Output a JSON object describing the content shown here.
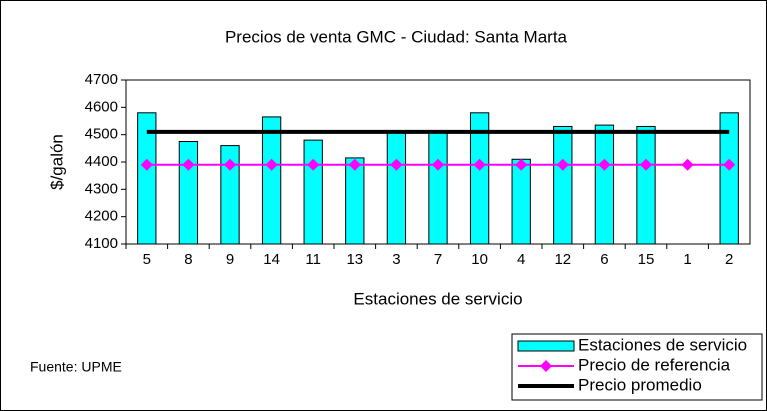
{
  "chart_data": {
    "type": "bar",
    "title": "Precios de venta GMC - Ciudad: Santa Marta",
    "x_label": "Estaciones de servicio",
    "y_label": "$/galón",
    "source": "Fuente: UPME",
    "categories": [
      "5",
      "8",
      "9",
      "14",
      "11",
      "13",
      "3",
      "7",
      "10",
      "4",
      "12",
      "6",
      "15",
      "1",
      "2"
    ],
    "series": [
      {
        "name": "Estaciones de servicio",
        "type": "bar",
        "color": "#00ffff",
        "values": [
          4580,
          4475,
          4460,
          4565,
          4480,
          4415,
          4510,
          4510,
          4580,
          4410,
          4530,
          4535,
          4530,
          null,
          4580
        ]
      },
      {
        "name": "Precio de referencia",
        "type": "line",
        "marker": "diamond",
        "color": "#ff00ff",
        "values": [
          4390,
          4390,
          4390,
          4390,
          4390,
          4390,
          4390,
          4390,
          4390,
          4390,
          4390,
          4390,
          4390,
          4390,
          4390
        ]
      },
      {
        "name": "Precio promedio",
        "type": "line",
        "color": "#000000",
        "values": [
          4510,
          4510,
          4510,
          4510,
          4510,
          4510,
          4510,
          4510,
          4510,
          4510,
          4510,
          4510,
          4510,
          4510,
          4510
        ]
      }
    ],
    "ylim": [
      4100,
      4700
    ],
    "yticks": [
      4100,
      4200,
      4300,
      4400,
      4500,
      4600,
      4700
    ],
    "grid": false,
    "legend": "bottom-right"
  }
}
